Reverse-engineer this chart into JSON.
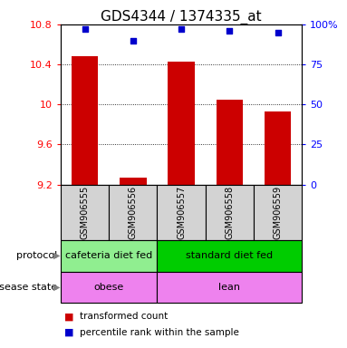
{
  "title": "GDS4344 / 1374335_at",
  "samples": [
    "GSM906555",
    "GSM906556",
    "GSM906557",
    "GSM906558",
    "GSM906559"
  ],
  "bar_values": [
    10.48,
    9.27,
    10.43,
    10.05,
    9.93
  ],
  "percentile_values": [
    97,
    90,
    97,
    96,
    95
  ],
  "ymin": 9.2,
  "ymax": 10.8,
  "yticks": [
    9.2,
    9.6,
    10.0,
    10.4,
    10.8
  ],
  "ytick_labels": [
    "9.2",
    "9.6",
    "10",
    "10.4",
    "10.8"
  ],
  "right_yticks": [
    0,
    25,
    50,
    75,
    100
  ],
  "right_ytick_labels": [
    "0",
    "25",
    "50",
    "75",
    "100%"
  ],
  "bar_color": "#cc0000",
  "dot_color": "#0000cc",
  "protocol_groups": [
    {
      "label": "cafeteria diet fed",
      "start": 0,
      "end": 2,
      "color": "#90ee90"
    },
    {
      "label": "standard diet fed",
      "start": 2,
      "end": 5,
      "color": "#00dd00"
    }
  ],
  "disease_groups": [
    {
      "label": "obese",
      "start": 0,
      "end": 2,
      "color": "#ee82ee"
    },
    {
      "label": "lean",
      "start": 2,
      "end": 5,
      "color": "#ee82ee"
    }
  ],
  "protocol_label": "protocol",
  "disease_label": "disease state",
  "legend_items": [
    {
      "color": "#cc0000",
      "label": "transformed count"
    },
    {
      "color": "#0000cc",
      "label": "percentile rank within the sample"
    }
  ],
  "bg_color": "#ffffff",
  "label_area_color": "#d3d3d3",
  "title_fontsize": 11,
  "tick_fontsize": 8,
  "label_fontsize": 8,
  "sample_fontsize": 7,
  "row_fontsize": 8
}
